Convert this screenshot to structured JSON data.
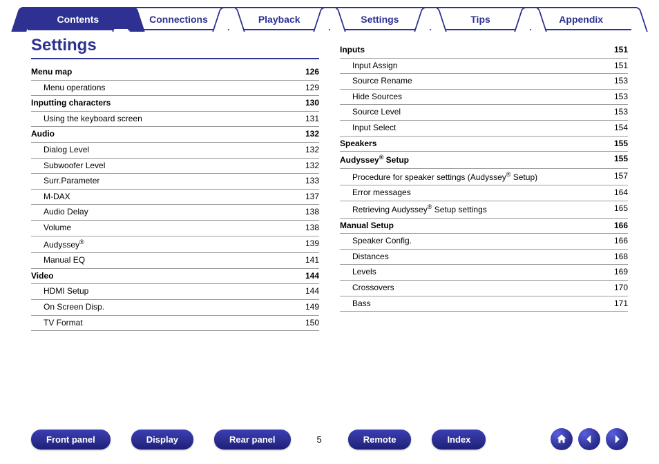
{
  "colors": {
    "primary": "#2e3192",
    "text": "#000000",
    "rule": "#999999",
    "background": "#ffffff"
  },
  "tabs": [
    {
      "label": "Contents",
      "active": true
    },
    {
      "label": "Connections",
      "active": false
    },
    {
      "label": "Playback",
      "active": false
    },
    {
      "label": "Settings",
      "active": false
    },
    {
      "label": "Tips",
      "active": false
    },
    {
      "label": "Appendix",
      "active": false
    }
  ],
  "page_title": "Settings",
  "left_column": [
    {
      "label": "Menu map",
      "page": "126",
      "bold": true,
      "indent": false
    },
    {
      "label": "Menu operations",
      "page": "129",
      "bold": false,
      "indent": true
    },
    {
      "label": "Inputting characters",
      "page": "130",
      "bold": true,
      "indent": false
    },
    {
      "label": "Using the keyboard screen",
      "page": "131",
      "bold": false,
      "indent": true
    },
    {
      "label": "Audio",
      "page": "132",
      "bold": true,
      "indent": false
    },
    {
      "label": "Dialog Level",
      "page": "132",
      "bold": false,
      "indent": true
    },
    {
      "label": "Subwoofer Level",
      "page": "132",
      "bold": false,
      "indent": true
    },
    {
      "label": "Surr.Parameter",
      "page": "133",
      "bold": false,
      "indent": true
    },
    {
      "label": "M-DAX",
      "page": "137",
      "bold": false,
      "indent": true
    },
    {
      "label": "Audio Delay",
      "page": "138",
      "bold": false,
      "indent": true
    },
    {
      "label": "Volume",
      "page": "138",
      "bold": false,
      "indent": true
    },
    {
      "label": "Audyssey®",
      "page": "139",
      "bold": false,
      "indent": true,
      "reg": true
    },
    {
      "label": "Manual EQ",
      "page": "141",
      "bold": false,
      "indent": true
    },
    {
      "label": "Video",
      "page": "144",
      "bold": true,
      "indent": false
    },
    {
      "label": "HDMI Setup",
      "page": "144",
      "bold": false,
      "indent": true
    },
    {
      "label": "On Screen Disp.",
      "page": "149",
      "bold": false,
      "indent": true
    },
    {
      "label": "TV Format",
      "page": "150",
      "bold": false,
      "indent": true
    }
  ],
  "right_column": [
    {
      "label": "Inputs",
      "page": "151",
      "bold": true,
      "indent": false
    },
    {
      "label": "Input Assign",
      "page": "151",
      "bold": false,
      "indent": true
    },
    {
      "label": "Source Rename",
      "page": "153",
      "bold": false,
      "indent": true
    },
    {
      "label": "Hide Sources",
      "page": "153",
      "bold": false,
      "indent": true
    },
    {
      "label": "Source Level",
      "page": "153",
      "bold": false,
      "indent": true
    },
    {
      "label": "Input Select",
      "page": "154",
      "bold": false,
      "indent": true
    },
    {
      "label": "Speakers",
      "page": "155",
      "bold": true,
      "indent": false
    },
    {
      "label": "Audyssey® Setup",
      "page": "155",
      "bold": true,
      "indent": false,
      "reg": true
    },
    {
      "label": "Procedure for speaker settings (Audyssey® Setup)",
      "page": "157",
      "bold": false,
      "indent": true,
      "reg": true
    },
    {
      "label": "Error messages",
      "page": "164",
      "bold": false,
      "indent": true
    },
    {
      "label": "Retrieving Audyssey® Setup settings",
      "page": "165",
      "bold": false,
      "indent": true,
      "reg": true
    },
    {
      "label": "Manual Setup",
      "page": "166",
      "bold": true,
      "indent": false
    },
    {
      "label": "Speaker Config.",
      "page": "166",
      "bold": false,
      "indent": true
    },
    {
      "label": "Distances",
      "page": "168",
      "bold": false,
      "indent": true
    },
    {
      "label": "Levels",
      "page": "169",
      "bold": false,
      "indent": true
    },
    {
      "label": "Crossovers",
      "page": "170",
      "bold": false,
      "indent": true
    },
    {
      "label": "Bass",
      "page": "171",
      "bold": false,
      "indent": true
    }
  ],
  "footer": {
    "buttons_left": [
      "Front panel",
      "Display",
      "Rear panel"
    ],
    "page_number": "5",
    "buttons_right": [
      "Remote",
      "Index"
    ]
  }
}
